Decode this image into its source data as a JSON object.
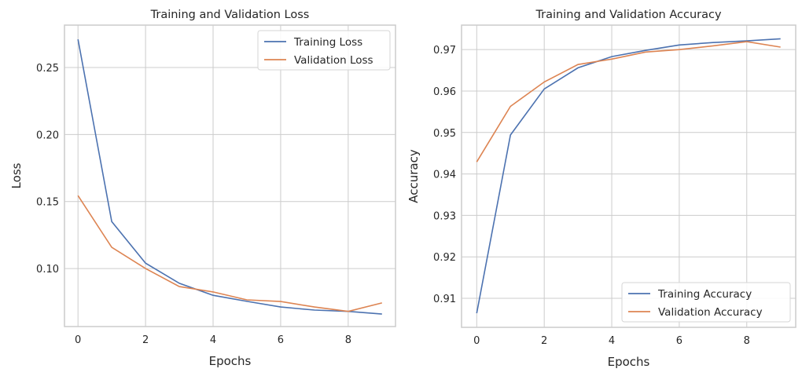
{
  "chart_data": [
    {
      "type": "line",
      "title": "Training and Validation Loss",
      "xlabel": "Epochs",
      "ylabel": "Loss",
      "xlim": [
        -0.4,
        9.4
      ],
      "ylim": [
        0.0567,
        0.2816
      ],
      "xticks": [
        "0",
        "2",
        "4",
        "6",
        "8"
      ],
      "xtick_values": [
        0,
        2,
        4,
        6,
        8
      ],
      "yticks": [
        "0.10",
        "0.15",
        "0.20",
        "0.25"
      ],
      "ytick_values": [
        0.1,
        0.15,
        0.2,
        0.25
      ],
      "grid": true,
      "legend_position": "top-right",
      "x": [
        0,
        1,
        2,
        3,
        4,
        5,
        6,
        7,
        8,
        9
      ],
      "series": [
        {
          "name": "Training Loss",
          "color": "#4c72b0",
          "values": [
            0.271,
            0.135,
            0.104,
            0.089,
            0.08,
            0.0755,
            0.0713,
            0.069,
            0.068,
            0.066
          ]
        },
        {
          "name": "Validation Loss",
          "color": "#dd8452",
          "values": [
            0.1544,
            0.1158,
            0.1,
            0.0865,
            0.0825,
            0.0766,
            0.0754,
            0.0713,
            0.068,
            0.0743
          ]
        }
      ]
    },
    {
      "type": "line",
      "title": "Training and Validation Accuracy",
      "xlabel": "Epochs",
      "ylabel": "Accuracy",
      "xlim": [
        -0.45,
        9.45
      ],
      "ylim": [
        0.903,
        0.9759
      ],
      "xticks": [
        "0",
        "2",
        "4",
        "6",
        "8"
      ],
      "xtick_values": [
        0,
        2,
        4,
        6,
        8
      ],
      "yticks": [
        "0.91",
        "0.92",
        "0.93",
        "0.94",
        "0.95",
        "0.96",
        "0.97"
      ],
      "ytick_values": [
        0.91,
        0.92,
        0.93,
        0.94,
        0.95,
        0.96,
        0.97
      ],
      "grid": true,
      "legend_position": "bottom-right",
      "x": [
        0,
        1,
        2,
        3,
        4,
        5,
        6,
        7,
        8,
        9
      ],
      "series": [
        {
          "name": "Training Accuracy",
          "color": "#4c72b0",
          "values": [
            0.9064,
            0.9494,
            0.9605,
            0.9656,
            0.9683,
            0.9698,
            0.9711,
            0.9717,
            0.9721,
            0.9726
          ]
        },
        {
          "name": "Validation Accuracy",
          "color": "#dd8452",
          "values": [
            0.9429,
            0.9563,
            0.9622,
            0.9664,
            0.9677,
            0.9694,
            0.97,
            0.9709,
            0.9719,
            0.9706
          ]
        }
      ]
    }
  ]
}
